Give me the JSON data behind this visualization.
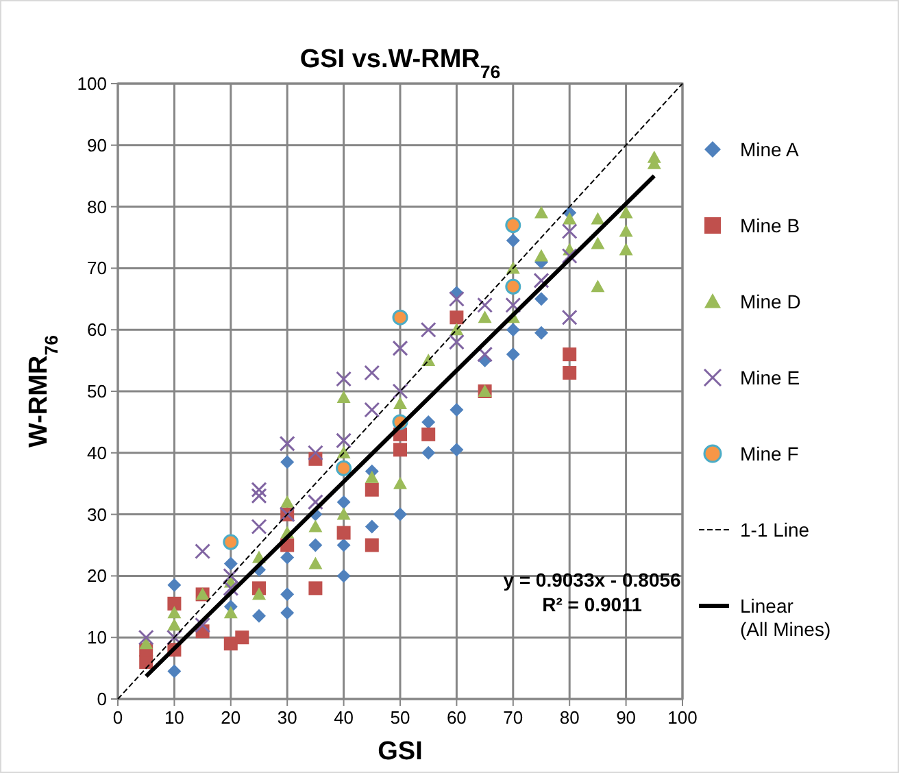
{
  "chart_data": {
    "type": "scatter",
    "title": "GSI vs.W-RMR$_{76}$",
    "xlabel": "GSI",
    "ylabel": "W-RMR$_{76}$",
    "xlim": [
      0,
      100
    ],
    "ylim": [
      0,
      100
    ],
    "xticks": [
      0,
      10,
      20,
      30,
      40,
      50,
      60,
      70,
      80,
      90,
      100
    ],
    "yticks": [
      0,
      10,
      20,
      30,
      40,
      50,
      60,
      70,
      80,
      90,
      100
    ],
    "grid": true,
    "legend": "right",
    "annotations": [
      "y = 0.9033x - 0.8056",
      "R² = 0.9011"
    ],
    "series": [
      {
        "name": "Mine A",
        "color": "#4f81bd",
        "marker": "diamond",
        "x": [
          10,
          10,
          20,
          20,
          25,
          25,
          30,
          30,
          30,
          30,
          35,
          35,
          40,
          40,
          40,
          45,
          45,
          50,
          55,
          55,
          60,
          60,
          60,
          65,
          70,
          70,
          70,
          75,
          75,
          80,
          75
        ],
        "values": [
          4.5,
          18.5,
          22,
          15,
          13.5,
          21,
          38.5,
          14,
          17,
          23,
          25,
          30,
          20,
          25,
          32,
          28,
          37,
          30,
          45,
          40,
          66,
          47,
          40.5,
          55,
          74.5,
          56,
          60,
          59.5,
          65,
          79,
          71
        ]
      },
      {
        "name": "Mine B",
        "color": "#c0504d",
        "marker": "square",
        "x": [
          5,
          5,
          10,
          10,
          15,
          15,
          20,
          22,
          25,
          30,
          30,
          35,
          35,
          40,
          45,
          45,
          50,
          50,
          55,
          60,
          65,
          80,
          80
        ],
        "values": [
          6,
          8,
          8,
          15.5,
          11,
          17,
          9,
          10,
          18,
          25,
          30,
          18,
          39,
          27,
          25,
          34,
          40.5,
          43,
          43,
          62,
          50,
          53,
          56
        ]
      },
      {
        "name": "Mine D",
        "color": "#9bbb59",
        "marker": "triangle",
        "x": [
          5,
          10,
          10,
          15,
          20,
          20,
          25,
          25,
          30,
          30,
          35,
          35,
          40,
          40,
          40,
          45,
          50,
          50,
          55,
          60,
          65,
          65,
          70,
          70,
          75,
          75,
          80,
          80,
          85,
          85,
          85,
          90,
          90,
          90,
          95,
          95
        ],
        "values": [
          9,
          14,
          12,
          17,
          14,
          19,
          17,
          23,
          27,
          32,
          22,
          28,
          40,
          49,
          30,
          36,
          35,
          48,
          55,
          60,
          62,
          50,
          70,
          62,
          79,
          72,
          78,
          73,
          78,
          74,
          67,
          79,
          76,
          73,
          87,
          88
        ]
      },
      {
        "name": "Mine E",
        "color": "#8064a2",
        "marker": "cross",
        "x": [
          5,
          10,
          15,
          15,
          20,
          20,
          25,
          25,
          25,
          30,
          30,
          35,
          35,
          40,
          40,
          45,
          45,
          50,
          50,
          55,
          60,
          60,
          65,
          65,
          70,
          75,
          80,
          80,
          80
        ],
        "values": [
          10,
          10,
          24,
          12,
          18,
          20,
          33,
          34,
          28,
          41.5,
          30,
          40,
          32,
          52,
          42,
          53,
          47,
          57,
          50,
          60,
          65,
          58,
          64,
          56,
          64,
          68,
          76,
          62,
          72
        ]
      },
      {
        "name": "Mine F",
        "color": "#f79646",
        "marker": "circle",
        "x": [
          20,
          40,
          50,
          50,
          70,
          70
        ],
        "values": [
          25.5,
          37.5,
          62,
          45,
          77,
          67
        ]
      },
      {
        "name": "1-1 Line",
        "type": "line",
        "color": "#000000",
        "marker": "none",
        "line_style": "dashed",
        "x": [
          0,
          100
        ],
        "values": [
          0,
          100
        ]
      },
      {
        "name": "Linear (All Mines)",
        "type": "line",
        "color": "#000000",
        "marker": "none",
        "line_style": "solid",
        "x": [
          5,
          95
        ],
        "values": [
          3.7,
          85
        ]
      }
    ]
  }
}
